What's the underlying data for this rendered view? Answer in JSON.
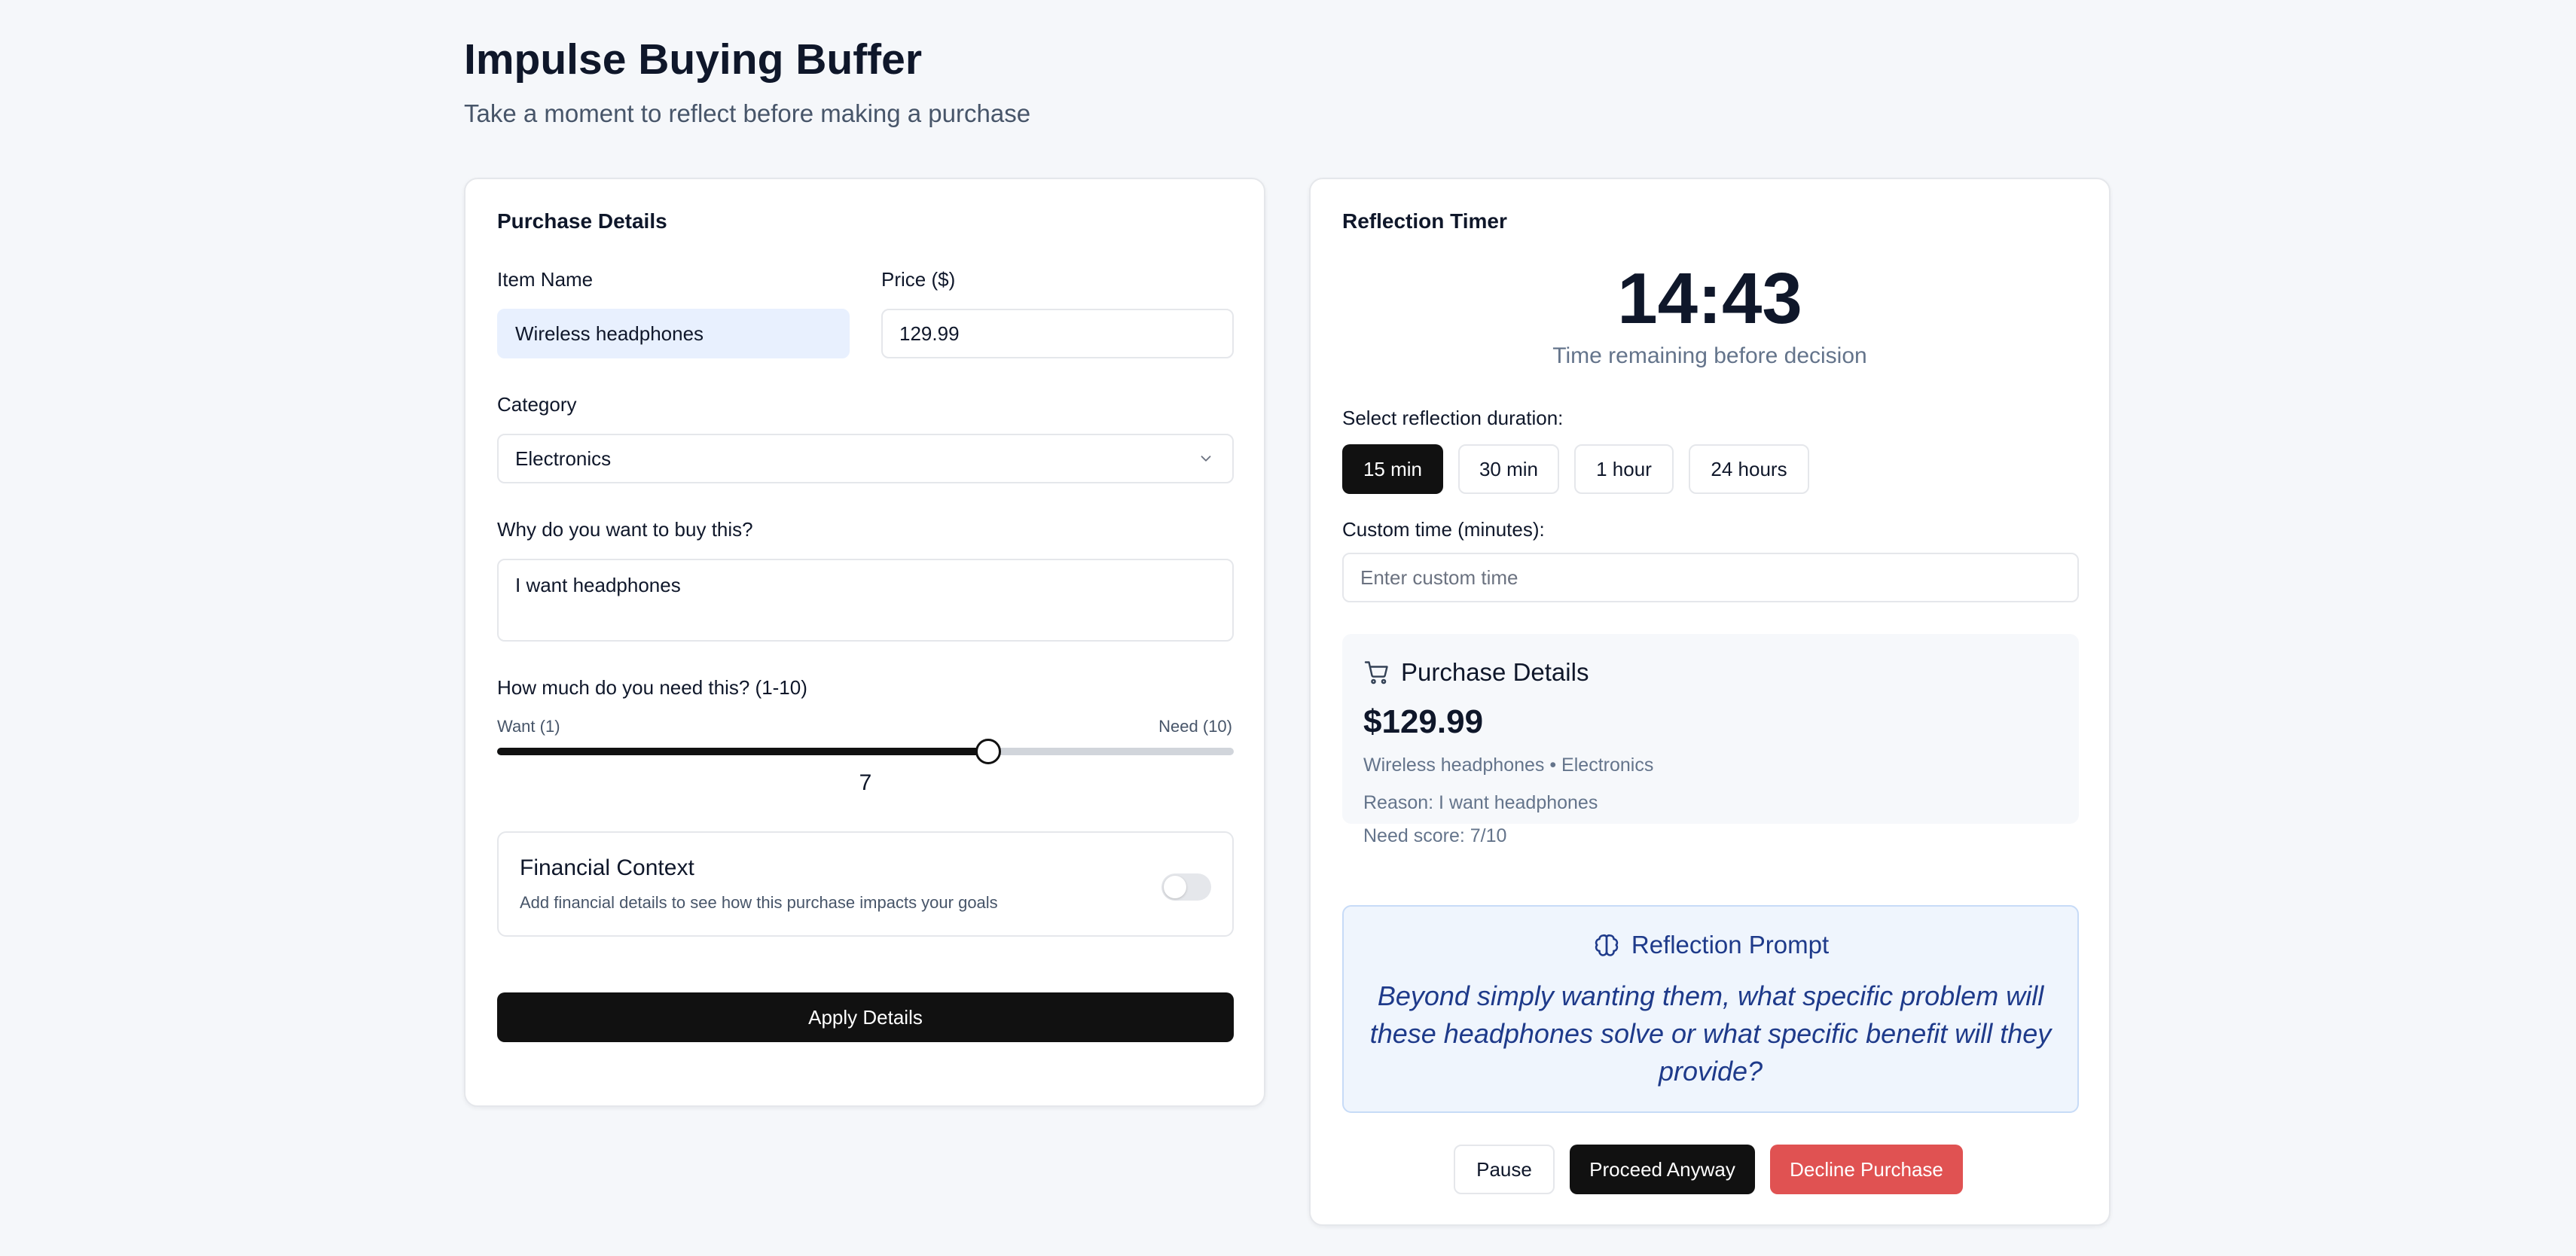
{
  "header": {
    "title": "Impulse Buying Buffer",
    "subtitle": "Take a moment to reflect before making a purchase"
  },
  "form": {
    "title": "Purchase Details",
    "item_name_label": "Item Name",
    "item_name_value": "Wireless headphones",
    "price_label": "Price ($)",
    "price_value": "129.99",
    "category_label": "Category",
    "category_value": "Electronics",
    "reason_label": "Why do you want to buy this?",
    "reason_value": "I want headphones",
    "need_label": "How much do you need this? (1-10)",
    "need_min_label": "Want (1)",
    "need_max_label": "Need (10)",
    "need_value": 7,
    "need_min": 1,
    "need_max": 10,
    "financial_title": "Financial Context",
    "financial_desc": "Add financial details to see how this purchase impacts your goals",
    "financial_enabled": false,
    "apply_label": "Apply Details"
  },
  "timer": {
    "title": "Reflection Timer",
    "time": "14:43",
    "caption": "Time remaining before decision",
    "duration_label": "Select reflection duration:",
    "durations": [
      "15 min",
      "30 min",
      "1 hour",
      "24 hours"
    ],
    "selected_duration": "15 min",
    "custom_label": "Custom time (minutes):",
    "custom_placeholder": "Enter custom time"
  },
  "summary": {
    "title": "Purchase Details",
    "price": "$129.99",
    "item_line": "Wireless headphones • Electronics",
    "reason_line": "Reason: I want headphones",
    "need_line": "Need score: 7/10"
  },
  "prompt": {
    "title": "Reflection Prompt",
    "text": "Beyond simply wanting them, what specific problem will these headphones solve or what specific benefit will they provide?"
  },
  "actions": {
    "pause": "Pause",
    "proceed": "Proceed Anyway",
    "decline": "Decline Purchase"
  },
  "icons": {
    "cart": "shopping-cart-icon",
    "brain": "brain-icon",
    "chevron": "chevron-down-icon"
  },
  "colors": {
    "primary": "#111111",
    "danger": "#e05252",
    "prompt_bg": "#eff5fd",
    "prompt_text": "#1e3a8a",
    "autofill": "#e8f0fe"
  }
}
